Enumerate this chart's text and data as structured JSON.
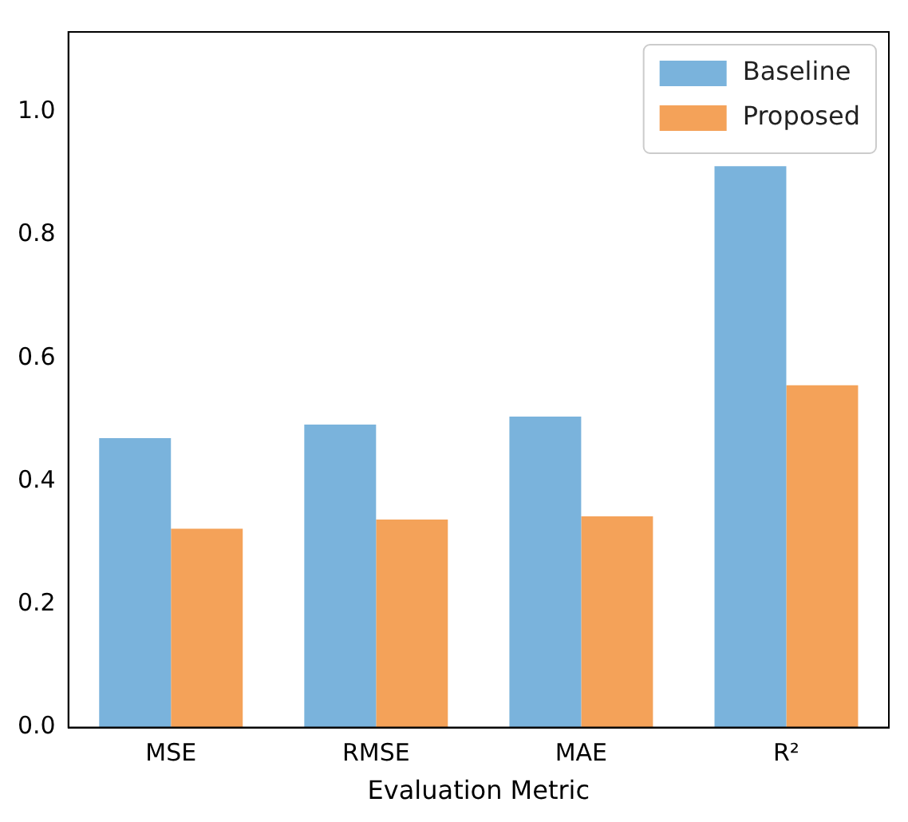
{
  "chart_data": {
    "type": "bar",
    "xlabel": "Evaluation Metric",
    "categories": [
      "MSE",
      "RMSE",
      "MAE",
      "R²"
    ],
    "series": [
      {
        "name": "Baseline",
        "color": "#7ab3dc",
        "values": [
          0.47,
          0.492,
          0.505,
          0.912
        ]
      },
      {
        "name": "Proposed",
        "color": "#f4a259",
        "values": [
          0.323,
          0.338,
          0.343,
          0.556
        ]
      }
    ],
    "ylim": [
      0,
      1.13
    ],
    "yticks": [
      {
        "value": 0,
        "label": "0.0"
      },
      0.2,
      0.4,
      0.6,
      0.8,
      {
        "value": 1,
        "label": "1.0"
      }
    ],
    "legend": "top right",
    "grid": false
  }
}
